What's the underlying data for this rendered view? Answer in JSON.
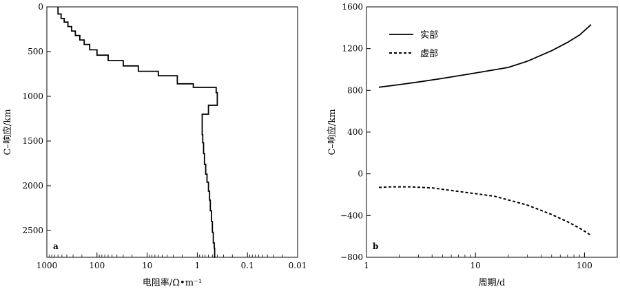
{
  "chart_data": [
    {
      "type": "line",
      "panel_label": "a",
      "xlabel": "电阻率/Ω•m⁻¹",
      "ylabel": "C–响应/km",
      "x_scale": "log",
      "x_reversed": true,
      "xlim": [
        1000,
        0.01
      ],
      "ylim": [
        0,
        2800
      ],
      "y_reversed": true,
      "x_ticks": [
        1000,
        100,
        10,
        1,
        0.1,
        0.01
      ],
      "x_tick_labels": [
        "1000",
        "100",
        "10",
        "1",
        "0.1",
        "0.01"
      ],
      "y_ticks": [
        0,
        500,
        1000,
        1500,
        2000,
        2500
      ],
      "y_tick_labels": [
        "0",
        "500",
        "1000",
        "1500",
        "2000",
        "2500"
      ],
      "grid": false,
      "series": [
        {
          "style": "solid",
          "step_profile": true,
          "resistivity": [
            600,
            520,
            450,
            380,
            320,
            270,
            220,
            180,
            140,
            100,
            60,
            30,
            15,
            6,
            2.5,
            1.2,
            0.42,
            0.4,
            0.6,
            0.8,
            0.78,
            0.75,
            0.72,
            0.68,
            0.64,
            0.6,
            0.57,
            0.55,
            0.52,
            0.5,
            0.48,
            0.46,
            0.45,
            0.44
          ],
          "depth": [
            0,
            80,
            130,
            170,
            220,
            270,
            320,
            370,
            420,
            480,
            540,
            600,
            660,
            720,
            770,
            860,
            900,
            960,
            1100,
            1200,
            1430,
            1520,
            1640,
            1760,
            1870,
            1960,
            2060,
            2160,
            2280,
            2400,
            2520,
            2640,
            2700,
            2800
          ]
        }
      ]
    },
    {
      "type": "line",
      "panel_label": "b",
      "xlabel": "周期/d",
      "ylabel": "C–响应/km",
      "x_scale": "log",
      "xlim": [
        1,
        200
      ],
      "ylim": [
        -800,
        1600
      ],
      "x_ticks": [
        1,
        10,
        100
      ],
      "x_tick_labels": [
        "1",
        "10",
        "100"
      ],
      "y_ticks": [
        -800,
        -400,
        0,
        400,
        800,
        1200,
        1600
      ],
      "y_tick_labels": [
        "−800",
        "−400",
        "0",
        "400",
        "800",
        "1200",
        "1600"
      ],
      "grid": false,
      "legend_position": "top-left",
      "series": [
        {
          "name": "实部",
          "style": "solid",
          "x": [
            1.3,
            2,
            3,
            5,
            8,
            12,
            20,
            30,
            50,
            70,
            90,
            115
          ],
          "values": [
            830,
            855,
            880,
            915,
            950,
            980,
            1020,
            1080,
            1180,
            1260,
            1330,
            1430
          ]
        },
        {
          "name": "虚部",
          "style": "dashed",
          "x": [
            1.3,
            1.7,
            2.5,
            4,
            6,
            10,
            15,
            20,
            30,
            50,
            70,
            90,
            115
          ],
          "values": [
            -130,
            -125,
            -125,
            -135,
            -160,
            -190,
            -215,
            -250,
            -300,
            -390,
            -460,
            -520,
            -590
          ]
        }
      ]
    }
  ]
}
